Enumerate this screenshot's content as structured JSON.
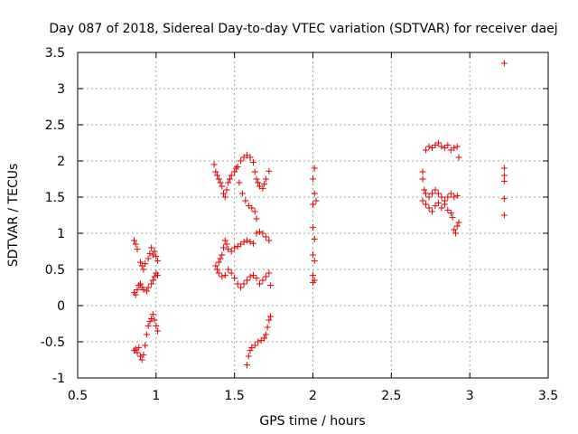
{
  "chart_data": {
    "type": "scatter",
    "title": "Day 087 of 2018, Sidereal Day-to-day VTEC variation (SDTVAR) for receiver daej",
    "xlabel": "GPS time / hours",
    "ylabel": "SDTVAR / TECUs",
    "xlim": [
      0.5,
      3.5
    ],
    "ylim": [
      -1,
      3.5
    ],
    "grid": true,
    "marker": "+",
    "color": "#e00000",
    "xticks": [
      {
        "value": 0.5,
        "label": "0.5"
      },
      {
        "value": 1,
        "label": "1"
      },
      {
        "value": 1.5,
        "label": "1.5"
      },
      {
        "value": 2,
        "label": "2"
      },
      {
        "value": 2.5,
        "label": "2.5"
      },
      {
        "value": 3,
        "label": "3"
      },
      {
        "value": 3.5,
        "label": "3.5"
      }
    ],
    "yticks": [
      {
        "value": -1,
        "label": "-1"
      },
      {
        "value": -0.5,
        "label": "-0.5"
      },
      {
        "value": 0,
        "label": "0"
      },
      {
        "value": 0.5,
        "label": "0.5"
      },
      {
        "value": 1,
        "label": "1"
      },
      {
        "value": 1.5,
        "label": "1.5"
      },
      {
        "value": 2,
        "label": "2"
      },
      {
        "value": 2.5,
        "label": "2.5"
      },
      {
        "value": 3,
        "label": "3"
      },
      {
        "value": 3.5,
        "label": "3.5"
      }
    ],
    "series": [
      {
        "name": "SDTVAR",
        "points": [
          [
            0.86,
            0.9
          ],
          [
            0.87,
            0.85
          ],
          [
            0.88,
            0.78
          ],
          [
            0.9,
            0.6
          ],
          [
            0.91,
            0.55
          ],
          [
            0.92,
            0.5
          ],
          [
            0.93,
            0.58
          ],
          [
            0.95,
            0.65
          ],
          [
            0.96,
            0.72
          ],
          [
            0.97,
            0.8
          ],
          [
            0.98,
            0.7
          ],
          [
            0.99,
            0.75
          ],
          [
            1.0,
            0.68
          ],
          [
            1.01,
            0.62
          ],
          [
            0.86,
            0.18
          ],
          [
            0.87,
            0.15
          ],
          [
            0.88,
            0.22
          ],
          [
            0.89,
            0.28
          ],
          [
            0.9,
            0.3
          ],
          [
            0.91,
            0.25
          ],
          [
            0.92,
            0.22
          ],
          [
            0.94,
            0.2
          ],
          [
            0.95,
            0.25
          ],
          [
            0.97,
            0.3
          ],
          [
            0.98,
            0.35
          ],
          [
            0.99,
            0.4
          ],
          [
            1.0,
            0.45
          ],
          [
            1.01,
            0.42
          ],
          [
            0.86,
            -0.62
          ],
          [
            0.87,
            -0.6
          ],
          [
            0.88,
            -0.65
          ],
          [
            0.89,
            -0.58
          ],
          [
            0.9,
            -0.7
          ],
          [
            0.91,
            -0.75
          ],
          [
            0.92,
            -0.68
          ],
          [
            0.93,
            -0.55
          ],
          [
            0.94,
            -0.4
          ],
          [
            0.95,
            -0.28
          ],
          [
            0.96,
            -0.22
          ],
          [
            0.97,
            -0.18
          ],
          [
            0.98,
            -0.12
          ],
          [
            0.99,
            -0.2
          ],
          [
            1.0,
            -0.28
          ],
          [
            1.01,
            -0.35
          ],
          [
            1.37,
            1.95
          ],
          [
            1.38,
            1.85
          ],
          [
            1.39,
            1.8
          ],
          [
            1.4,
            1.75
          ],
          [
            1.41,
            1.7
          ],
          [
            1.42,
            1.65
          ],
          [
            1.43,
            1.55
          ],
          [
            1.44,
            1.5
          ],
          [
            1.45,
            1.6
          ],
          [
            1.46,
            1.7
          ],
          [
            1.47,
            1.75
          ],
          [
            1.48,
            1.8
          ],
          [
            1.5,
            1.85
          ],
          [
            1.51,
            1.9
          ],
          [
            1.52,
            1.92
          ],
          [
            1.54,
            2.0
          ],
          [
            1.56,
            2.05
          ],
          [
            1.58,
            2.08
          ],
          [
            1.6,
            2.05
          ],
          [
            1.62,
            1.98
          ],
          [
            1.63,
            1.85
          ],
          [
            1.64,
            1.75
          ],
          [
            1.65,
            1.7
          ],
          [
            1.66,
            1.65
          ],
          [
            1.68,
            1.62
          ],
          [
            1.69,
            1.68
          ],
          [
            1.7,
            1.75
          ],
          [
            1.72,
            1.86
          ],
          [
            1.53,
            1.7
          ],
          [
            1.55,
            1.55
          ],
          [
            1.57,
            1.45
          ],
          [
            1.59,
            1.38
          ],
          [
            1.61,
            1.35
          ],
          [
            1.63,
            1.3
          ],
          [
            1.64,
            1.2
          ],
          [
            1.38,
            0.55
          ],
          [
            1.39,
            0.5
          ],
          [
            1.4,
            0.6
          ],
          [
            1.41,
            0.65
          ],
          [
            1.42,
            0.7
          ],
          [
            1.43,
            0.8
          ],
          [
            1.44,
            0.9
          ],
          [
            1.45,
            0.85
          ],
          [
            1.46,
            0.78
          ],
          [
            1.48,
            0.75
          ],
          [
            1.5,
            0.8
          ],
          [
            1.52,
            0.82
          ],
          [
            1.54,
            0.85
          ],
          [
            1.56,
            0.88
          ],
          [
            1.58,
            0.9
          ],
          [
            1.6,
            0.88
          ],
          [
            1.62,
            0.86
          ],
          [
            1.64,
            1.0
          ],
          [
            1.66,
            1.02
          ],
          [
            1.68,
            1.0
          ],
          [
            1.7,
            0.95
          ],
          [
            1.72,
            0.9
          ],
          [
            1.4,
            0.45
          ],
          [
            1.42,
            0.4
          ],
          [
            1.44,
            0.42
          ],
          [
            1.46,
            0.5
          ],
          [
            1.48,
            0.45
          ],
          [
            1.5,
            0.38
          ],
          [
            1.52,
            0.3
          ],
          [
            1.54,
            0.25
          ],
          [
            1.56,
            0.3
          ],
          [
            1.58,
            0.35
          ],
          [
            1.6,
            0.4
          ],
          [
            1.62,
            0.42
          ],
          [
            1.64,
            0.38
          ],
          [
            1.66,
            0.3
          ],
          [
            1.68,
            0.35
          ],
          [
            1.7,
            0.4
          ],
          [
            1.72,
            0.45
          ],
          [
            1.73,
            0.28
          ],
          [
            1.58,
            -0.82
          ],
          [
            1.59,
            -0.7
          ],
          [
            1.6,
            -0.62
          ],
          [
            1.61,
            -0.58
          ],
          [
            1.63,
            -0.55
          ],
          [
            1.65,
            -0.5
          ],
          [
            1.67,
            -0.48
          ],
          [
            1.69,
            -0.45
          ],
          [
            1.7,
            -0.4
          ],
          [
            1.71,
            -0.3
          ],
          [
            1.72,
            -0.2
          ],
          [
            1.73,
            -0.15
          ],
          [
            2.01,
            1.9
          ],
          [
            2.0,
            1.75
          ],
          [
            2.01,
            1.55
          ],
          [
            2.02,
            1.45
          ],
          [
            2.0,
            1.4
          ],
          [
            2.0,
            1.08
          ],
          [
            2.01,
            0.92
          ],
          [
            2.0,
            0.7
          ],
          [
            2.01,
            0.62
          ],
          [
            2.0,
            0.42
          ],
          [
            2.01,
            0.35
          ],
          [
            2.0,
            0.32
          ],
          [
            2.7,
            1.85
          ],
          [
            2.72,
            2.15
          ],
          [
            2.74,
            2.2
          ],
          [
            2.76,
            2.18
          ],
          [
            2.78,
            2.22
          ],
          [
            2.8,
            2.25
          ],
          [
            2.82,
            2.2
          ],
          [
            2.84,
            2.18
          ],
          [
            2.86,
            2.22
          ],
          [
            2.88,
            2.15
          ],
          [
            2.9,
            2.18
          ],
          [
            2.92,
            2.2
          ],
          [
            2.93,
            2.05
          ],
          [
            2.7,
            1.75
          ],
          [
            2.71,
            1.6
          ],
          [
            2.72,
            1.55
          ],
          [
            2.74,
            1.5
          ],
          [
            2.76,
            1.55
          ],
          [
            2.78,
            1.6
          ],
          [
            2.8,
            1.55
          ],
          [
            2.82,
            1.5
          ],
          [
            2.84,
            1.45
          ],
          [
            2.86,
            1.5
          ],
          [
            2.88,
            1.55
          ],
          [
            2.9,
            1.5
          ],
          [
            2.92,
            1.52
          ],
          [
            2.7,
            1.45
          ],
          [
            2.72,
            1.4
          ],
          [
            2.74,
            1.35
          ],
          [
            2.76,
            1.3
          ],
          [
            2.78,
            1.38
          ],
          [
            2.8,
            1.42
          ],
          [
            2.82,
            1.35
          ],
          [
            2.84,
            1.4
          ],
          [
            2.86,
            1.32
          ],
          [
            2.88,
            1.28
          ],
          [
            2.89,
            1.22
          ],
          [
            2.9,
            1.05
          ],
          [
            2.91,
            1.0
          ],
          [
            2.92,
            1.1
          ],
          [
            2.93,
            1.15
          ],
          [
            3.22,
            3.35
          ],
          [
            3.22,
            1.9
          ],
          [
            3.22,
            1.8
          ],
          [
            3.22,
            1.72
          ],
          [
            3.22,
            1.48
          ],
          [
            3.22,
            1.25
          ]
        ]
      }
    ]
  }
}
